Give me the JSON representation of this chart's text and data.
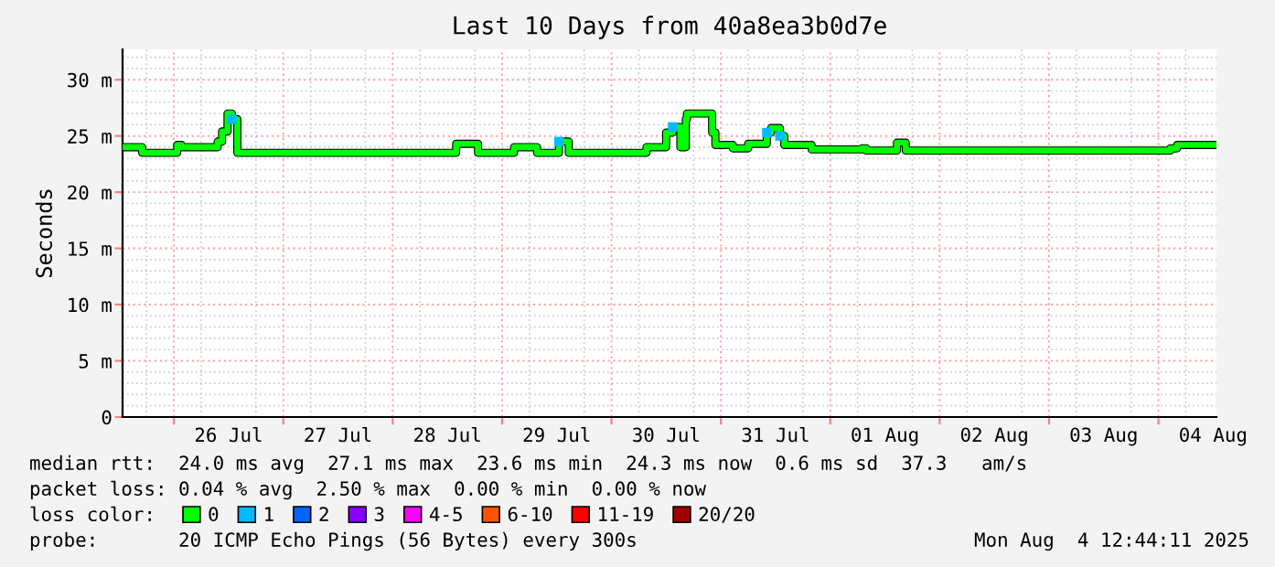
{
  "chart_data": {
    "type": "step",
    "title": "Last 10 Days from 40a8ea3b0d7e",
    "ylabel": "Seconds",
    "xlim": [
      "2025-07-25T12:44",
      "2025-08-04T12:44"
    ],
    "xticks": [
      {
        "value": "2025-07-26T00:00",
        "label": null
      },
      {
        "value": "2025-07-26T12:00",
        "label": "26 Jul"
      },
      {
        "value": "2025-07-27T00:00",
        "label": null
      },
      {
        "value": "2025-07-27T12:00",
        "label": "27 Jul"
      },
      {
        "value": "2025-07-28T00:00",
        "label": null
      },
      {
        "value": "2025-07-28T12:00",
        "label": "28 Jul"
      },
      {
        "value": "2025-07-29T00:00",
        "label": null
      },
      {
        "value": "2025-07-29T12:00",
        "label": "29 Jul"
      },
      {
        "value": "2025-07-30T00:00",
        "label": null
      },
      {
        "value": "2025-07-30T12:00",
        "label": "30 Jul"
      },
      {
        "value": "2025-07-31T00:00",
        "label": null
      },
      {
        "value": "2025-07-31T12:00",
        "label": "31 Jul"
      },
      {
        "value": "2025-08-01T00:00",
        "label": null
      },
      {
        "value": "2025-08-01T12:00",
        "label": "01 Aug"
      },
      {
        "value": "2025-08-02T00:00",
        "label": null
      },
      {
        "value": "2025-08-02T12:00",
        "label": "02 Aug"
      },
      {
        "value": "2025-08-03T00:00",
        "label": null
      },
      {
        "value": "2025-08-03T12:00",
        "label": "03 Aug"
      },
      {
        "value": "2025-08-04T00:00",
        "label": null
      },
      {
        "value": "2025-08-04T12:00",
        "label": "04 Aug"
      }
    ],
    "ylim": [
      0,
      32.7
    ],
    "yticks": [
      {
        "value": 0,
        "label": "0"
      },
      {
        "value": 5,
        "label": "5 m"
      },
      {
        "value": 10,
        "label": "10 m"
      },
      {
        "value": 15,
        "label": "15 m"
      },
      {
        "value": 20,
        "label": "20 m"
      },
      {
        "value": 25,
        "label": "25 m"
      },
      {
        "value": 30,
        "label": "30 m"
      }
    ],
    "grid": true,
    "legend": "bottom",
    "series": [
      {
        "color": "#00ff00",
        "x": [
          "2025-07-25T12:44",
          "2025-07-25T17:02",
          "2025-07-26T00:43",
          "2025-07-26T01:41",
          "2025-07-26T09:36",
          "2025-07-26T10:34",
          "2025-07-26T11:46",
          "2025-07-26T12:43",
          "2025-07-26T13:55",
          "2025-07-28T13:55",
          "2025-07-28T18:43",
          "2025-07-29T02:38",
          "2025-07-29T07:41",
          "2025-07-29T12:29",
          "2025-07-29T14:38",
          "2025-07-30T07:41",
          "2025-07-30T12:00",
          "2025-07-30T13:26",
          "2025-07-30T15:07",
          "2025-07-30T16:19",
          "2025-07-30T16:34",
          "2025-07-30T22:05",
          "2025-07-30T22:48",
          "2025-07-31T02:38",
          "2025-07-31T06:00",
          "2025-07-31T10:05",
          "2025-07-31T11:02",
          "2025-07-31T12:58",
          "2025-07-31T13:55",
          "2025-07-31T19:55",
          "2025-08-01T06:58",
          "2025-08-01T07:55",
          "2025-08-01T14:38",
          "2025-08-01T16:34",
          "2025-08-04T02:38",
          "2025-08-04T04:05",
          "2025-08-04T12:44"
        ],
        "values": [
          24.0,
          23.5,
          24.2,
          24.0,
          24.5,
          25.4,
          27.0,
          26.5,
          23.5,
          24.3,
          23.5,
          24.0,
          23.5,
          24.5,
          23.5,
          24.0,
          25.3,
          25.8,
          24.0,
          26.5,
          27.0,
          25.3,
          24.2,
          23.9,
          24.3,
          25.3,
          25.7,
          25.0,
          24.2,
          23.8,
          23.9,
          23.7,
          24.4,
          23.7,
          23.9,
          24.2,
          24.2
        ],
        "colors": [
          "#00ff00",
          "#00ff00",
          "#00ff00",
          "#00ff00",
          "#00ff00",
          "#00ff00",
          "#00ff00",
          "#00bbff",
          "#00ff00",
          "#00ff00",
          "#00ff00",
          "#00ff00",
          "#00ff00",
          "#00bbff",
          "#00ff00",
          "#00ff00",
          "#00ff00",
          "#00bbff",
          "#00ff00",
          "#00ff00",
          "#00ff00",
          "#00ff00",
          "#00ff00",
          "#00ff00",
          "#00ff00",
          "#00bbff",
          "#00ff00",
          "#00bbff",
          "#00ff00",
          "#00ff00",
          "#00ff00",
          "#00ff00",
          "#00ff00",
          "#00ff00",
          "#00ff00",
          "#00ff00",
          "#00ff00"
        ]
      },
      {
        "name": "0",
        "color": "#00ff00"
      },
      {
        "name": "1",
        "color": "#00bbff"
      },
      {
        "name": "2",
        "color": "#0066ff"
      },
      {
        "name": "3",
        "color": "#8800ff"
      },
      {
        "name": "4-5",
        "color": "#ff00ff"
      },
      {
        "name": "6-10",
        "color": "#ff5500"
      },
      {
        "name": "11-19",
        "color": "#ff0000"
      },
      {
        "name": "20/20",
        "color": "#a10000"
      }
    ],
    "annotations": [
      "median rtt:  24.0 ms avg  27.1 ms max  23.6 ms min  24.3 ms now  0.6 ms sd  37.3   am/s",
      "packet loss: 0.04 % avg  2.50 % max  0.00 % min  0.00 % now",
      "loss color:",
      "probe:       20 ICMP Echo Pings (56 Bytes) every 300s",
      "Mon Aug  4 12:44:11 2025"
    ]
  }
}
